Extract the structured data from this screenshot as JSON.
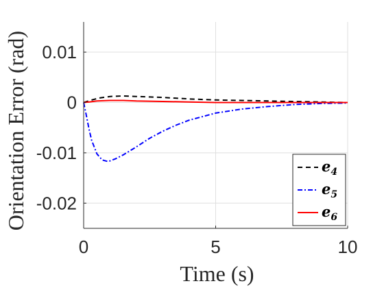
{
  "chart_data": {
    "type": "line",
    "title": "",
    "xlabel": "Time (s)",
    "ylabel": "Orientation Error (rad)",
    "xlim": [
      0,
      10
    ],
    "ylim": [
      -0.025,
      0.016
    ],
    "grid": true,
    "legend_position": "bottom-right",
    "x_ticks": [
      {
        "value": 0,
        "label": "0"
      },
      {
        "value": 5,
        "label": "5"
      },
      {
        "value": 10,
        "label": "10"
      }
    ],
    "y_ticks": [
      {
        "value": 0.01,
        "label": "0.01"
      },
      {
        "value": 0,
        "label": "0"
      },
      {
        "value": -0.01,
        "label": "-0.01"
      },
      {
        "value": -0.02,
        "label": "-0.02"
      }
    ],
    "series": [
      {
        "name": "e",
        "subscript": "4",
        "color": "#000000",
        "dash": "dashed",
        "x": [
          0,
          0.3,
          0.6,
          1.0,
          1.5,
          2.0,
          2.5,
          3.0,
          4.0,
          5.0,
          6.0,
          7.0,
          8.0,
          9.0,
          10.0
        ],
        "y": [
          0,
          0.0005,
          0.0009,
          0.0012,
          0.0013,
          0.0012,
          0.0011,
          0.001,
          0.0007,
          0.0005,
          0.0004,
          0.0003,
          0.0002,
          0.0001,
          0.0
        ]
      },
      {
        "name": "e",
        "subscript": "5",
        "color": "#0000ff",
        "dash": "dashdot",
        "x": [
          0,
          0.1,
          0.2,
          0.3,
          0.5,
          0.7,
          0.9,
          1.0,
          1.2,
          1.5,
          2.0,
          2.5,
          3.0,
          3.5,
          4.0,
          5.0,
          6.0,
          7.0,
          8.0,
          9.0,
          10.0
        ],
        "y": [
          0,
          -0.0025,
          -0.0052,
          -0.0075,
          -0.0102,
          -0.0114,
          -0.0117,
          -0.0116,
          -0.0112,
          -0.0104,
          -0.0088,
          -0.0071,
          -0.0057,
          -0.0045,
          -0.0035,
          -0.0021,
          -0.0013,
          -0.0008,
          -0.0004,
          -0.0002,
          -0.0001
        ]
      },
      {
        "name": "e",
        "subscript": "6",
        "color": "#ff0000",
        "dash": "solid",
        "x": [
          0,
          0.2,
          0.5,
          1.0,
          1.5,
          2.0,
          3.0,
          4.0,
          5.0,
          6.0,
          8.0,
          10.0
        ],
        "y": [
          0,
          0.0001,
          0.0003,
          0.0004,
          0.0004,
          0.0003,
          0.0002,
          0.0001,
          0.0,
          0.0,
          0.0,
          0.0
        ]
      }
    ]
  }
}
